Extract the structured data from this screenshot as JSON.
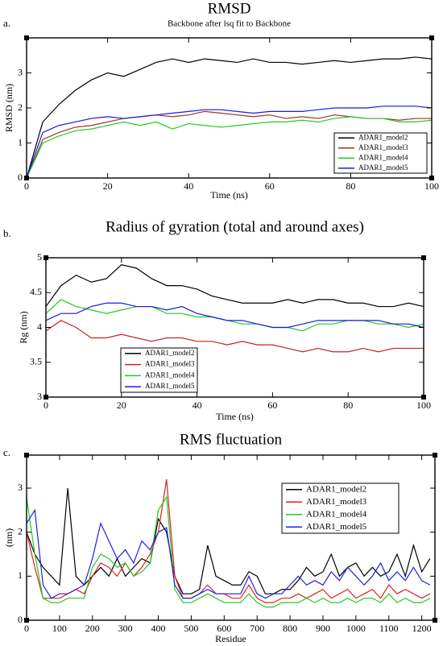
{
  "chart_data": [
    {
      "type": "line",
      "label": "a.",
      "title": "RMSD",
      "subtitle": "Backbone after lsq fit to Backbone",
      "x_label": "Time (ns)",
      "y_label": "RMSD (nm)",
      "x": [
        0,
        4,
        8,
        12,
        16,
        20,
        24,
        28,
        32,
        36,
        40,
        44,
        48,
        52,
        56,
        60,
        64,
        68,
        72,
        76,
        80,
        84,
        88,
        92,
        96,
        100
      ],
      "xlim": [
        0,
        100
      ],
      "xticks": [
        0,
        20,
        40,
        60,
        80,
        100
      ],
      "ylim": [
        0,
        4
      ],
      "yticks": [
        0,
        1,
        2,
        3
      ],
      "legend": "lower right",
      "series": [
        {
          "name": "ADAR1_model2",
          "color": "#000000",
          "values": [
            0,
            1.6,
            2.1,
            2.5,
            2.8,
            3.0,
            2.9,
            3.1,
            3.3,
            3.4,
            3.3,
            3.4,
            3.35,
            3.3,
            3.4,
            3.3,
            3.3,
            3.25,
            3.3,
            3.35,
            3.3,
            3.35,
            3.4,
            3.4,
            3.45,
            3.4
          ]
        },
        {
          "name": "ADAR1_model3",
          "color": "#a0302a",
          "values": [
            0,
            1.1,
            1.3,
            1.45,
            1.5,
            1.6,
            1.7,
            1.75,
            1.8,
            1.75,
            1.8,
            1.9,
            1.85,
            1.8,
            1.75,
            1.8,
            1.7,
            1.75,
            1.7,
            1.8,
            1.75,
            1.7,
            1.7,
            1.65,
            1.7,
            1.7
          ]
        },
        {
          "name": "ADAR1_model4",
          "color": "#22cc22",
          "values": [
            0,
            1.0,
            1.2,
            1.35,
            1.4,
            1.5,
            1.6,
            1.5,
            1.6,
            1.4,
            1.55,
            1.5,
            1.45,
            1.5,
            1.55,
            1.6,
            1.6,
            1.65,
            1.6,
            1.7,
            1.75,
            1.7,
            1.7,
            1.6,
            1.6,
            1.65
          ]
        },
        {
          "name": "ADAR1_model5",
          "color": "#1a1ae0",
          "values": [
            0,
            1.3,
            1.5,
            1.6,
            1.7,
            1.75,
            1.7,
            1.75,
            1.8,
            1.85,
            1.9,
            1.95,
            1.95,
            1.9,
            1.85,
            1.9,
            1.9,
            1.9,
            1.95,
            2.0,
            2.0,
            2.0,
            2.05,
            2.05,
            2.05,
            2.0
          ]
        }
      ]
    },
    {
      "type": "line",
      "label": "b.",
      "title": "Radius of gyration (total and around axes)",
      "x_label": "Time (ns)",
      "y_label": "Rg (nm)",
      "x": [
        0,
        4,
        8,
        12,
        16,
        20,
        24,
        28,
        32,
        36,
        40,
        44,
        48,
        52,
        56,
        60,
        64,
        68,
        72,
        76,
        80,
        84,
        88,
        92,
        96,
        100
      ],
      "xlim": [
        0,
        100
      ],
      "xticks": [
        0,
        20,
        40,
        60,
        80,
        100
      ],
      "ylim": [
        3,
        5
      ],
      "yticks": [
        3,
        3.5,
        4,
        4.5,
        5
      ],
      "legend": "lower left",
      "series": [
        {
          "name": "ADAR1_model2",
          "color": "#000000",
          "values": [
            4.3,
            4.6,
            4.75,
            4.65,
            4.7,
            4.9,
            4.85,
            4.7,
            4.6,
            4.6,
            4.55,
            4.45,
            4.4,
            4.35,
            4.35,
            4.35,
            4.4,
            4.35,
            4.4,
            4.4,
            4.35,
            4.35,
            4.3,
            4.3,
            4.35,
            4.3
          ]
        },
        {
          "name": "ADAR1_model3",
          "color": "#cc2020",
          "values": [
            3.95,
            4.1,
            4.0,
            3.85,
            3.85,
            3.9,
            3.85,
            3.8,
            3.85,
            3.85,
            3.8,
            3.8,
            3.75,
            3.8,
            3.75,
            3.75,
            3.7,
            3.65,
            3.7,
            3.65,
            3.65,
            3.7,
            3.65,
            3.7,
            3.7,
            3.7
          ]
        },
        {
          "name": "ADAR1_model4",
          "color": "#22cc22",
          "values": [
            4.2,
            4.4,
            4.3,
            4.25,
            4.2,
            4.25,
            4.3,
            4.3,
            4.2,
            4.2,
            4.15,
            4.15,
            4.1,
            4.05,
            4.05,
            4.0,
            4.0,
            3.95,
            4.05,
            4.05,
            4.1,
            4.1,
            4.05,
            4.05,
            4.0,
            4.05
          ]
        },
        {
          "name": "ADAR1_model5",
          "color": "#1a1ae0",
          "values": [
            4.1,
            4.2,
            4.2,
            4.3,
            4.35,
            4.35,
            4.3,
            4.3,
            4.25,
            4.3,
            4.2,
            4.15,
            4.1,
            4.1,
            4.05,
            4.0,
            4.0,
            4.05,
            4.1,
            4.1,
            4.1,
            4.1,
            4.1,
            4.05,
            4.05,
            4.0
          ]
        }
      ]
    },
    {
      "type": "line",
      "label": "c.",
      "title": "RMS fluctuation",
      "x_label": "Residue",
      "y_label": "(nm)",
      "x": [
        0,
        25,
        50,
        75,
        100,
        125,
        150,
        175,
        200,
        225,
        250,
        275,
        300,
        325,
        350,
        375,
        400,
        425,
        450,
        475,
        500,
        525,
        550,
        575,
        600,
        625,
        650,
        675,
        700,
        725,
        750,
        775,
        800,
        825,
        850,
        875,
        900,
        925,
        950,
        975,
        1000,
        1025,
        1050,
        1075,
        1100,
        1125,
        1150,
        1175,
        1200,
        1225
      ],
      "xlim": [
        0,
        1240
      ],
      "xticks": [
        0,
        100,
        200,
        300,
        400,
        500,
        600,
        700,
        800,
        900,
        1000,
        1100,
        1200
      ],
      "ylim": [
        0,
        3.75
      ],
      "yticks": [
        0,
        1,
        2,
        3
      ],
      "legend": "upper right",
      "series": [
        {
          "name": "ADAR1_model2",
          "color": "#000000",
          "values": [
            2.0,
            1.5,
            1.2,
            1.0,
            0.8,
            3.0,
            1.0,
            0.8,
            1.0,
            1.2,
            1.0,
            1.4,
            1.0,
            1.2,
            1.4,
            1.3,
            2.3,
            2.0,
            1.0,
            0.6,
            0.6,
            0.7,
            1.7,
            1.0,
            0.9,
            0.8,
            0.8,
            1.1,
            1.0,
            0.6,
            0.6,
            0.7,
            0.7,
            0.9,
            1.2,
            1.0,
            1.1,
            1.5,
            1.0,
            1.2,
            1.3,
            1.0,
            1.2,
            1.0,
            1.1,
            1.5,
            1.0,
            1.7,
            1.1,
            1.4
          ]
        },
        {
          "name": "ADAR1_model3",
          "color": "#e02020",
          "values": [
            2.0,
            1.2,
            0.5,
            0.5,
            0.5,
            0.6,
            0.7,
            0.6,
            1.0,
            1.3,
            1.2,
            1.0,
            1.3,
            1.0,
            1.2,
            1.5,
            2.0,
            3.2,
            1.0,
            0.5,
            0.5,
            0.6,
            0.8,
            0.6,
            0.6,
            0.5,
            0.5,
            0.8,
            0.5,
            0.4,
            0.4,
            0.5,
            0.5,
            0.6,
            0.5,
            0.6,
            0.7,
            0.5,
            0.6,
            0.7,
            0.5,
            0.6,
            0.7,
            0.5,
            0.8,
            0.6,
            0.7,
            0.6,
            0.5,
            0.6
          ]
        },
        {
          "name": "ADAR1_model4",
          "color": "#22cc22",
          "values": [
            2.8,
            1.5,
            0.5,
            0.4,
            0.4,
            0.5,
            0.5,
            0.5,
            1.2,
            1.5,
            1.4,
            1.2,
            1.3,
            1.0,
            1.1,
            1.3,
            2.5,
            2.8,
            0.7,
            0.4,
            0.4,
            0.5,
            0.6,
            0.5,
            0.4,
            0.4,
            0.4,
            0.6,
            0.4,
            0.3,
            0.3,
            0.4,
            0.4,
            0.4,
            0.5,
            0.4,
            0.5,
            0.4,
            0.4,
            0.5,
            0.4,
            0.5,
            0.5,
            0.4,
            0.6,
            0.4,
            0.5,
            0.4,
            0.4,
            0.5
          ]
        },
        {
          "name": "ADAR1_model5",
          "color": "#2020e0",
          "values": [
            2.2,
            2.5,
            0.8,
            0.5,
            0.6,
            0.6,
            0.7,
            0.8,
            1.4,
            2.2,
            1.8,
            1.4,
            1.6,
            1.3,
            1.8,
            1.6,
            2.0,
            2.1,
            0.8,
            0.5,
            0.5,
            0.6,
            0.7,
            0.6,
            0.6,
            0.6,
            0.6,
            1.0,
            0.6,
            0.5,
            0.6,
            0.6,
            0.8,
            1.0,
            0.8,
            0.9,
            0.8,
            1.1,
            0.9,
            1.2,
            1.0,
            0.8,
            1.0,
            1.3,
            0.9,
            1.1,
            0.9,
            1.2,
            0.9,
            0.8
          ]
        }
      ]
    }
  ]
}
